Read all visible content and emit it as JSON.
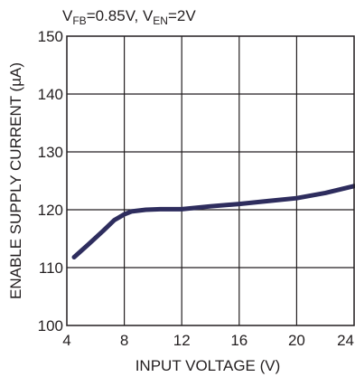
{
  "chart_data": {
    "type": "line",
    "conditions": {
      "vfb_main": "V",
      "vfb_sub": "FB",
      "vfb_val": "=0.85V, ",
      "ven_main": "V",
      "ven_sub": "EN",
      "ven_val": "=2V"
    },
    "xlabel": "INPUT VOLTAGE (V)",
    "ylabel": "ENABLE SUPPLY CURRENT (µA)",
    "xlim": [
      4,
      24
    ],
    "ylim": [
      100,
      150
    ],
    "xticks": [
      4,
      8,
      12,
      16,
      20,
      24
    ],
    "yticks": [
      100,
      110,
      120,
      130,
      140,
      150
    ],
    "grid": true,
    "line_color": "#2e2d5e",
    "series": [
      {
        "x": [
          4.5,
          5.5,
          6.5,
          7.3,
          8.0,
          8.5,
          9.5,
          10.5,
          12.0,
          14.0,
          16.0,
          18.0,
          20.0,
          22.0,
          24.0
        ],
        "values": [
          111.8,
          114.0,
          116.3,
          118.2,
          119.2,
          119.7,
          120.0,
          120.1,
          120.1,
          120.6,
          121.0,
          121.5,
          122.0,
          122.9,
          124.1
        ]
      }
    ]
  }
}
